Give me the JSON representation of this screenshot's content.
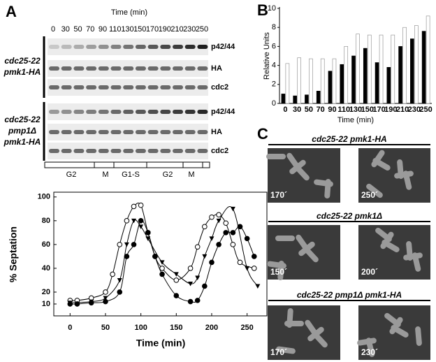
{
  "panel_labels": [
    "A",
    "B",
    "C"
  ],
  "blots": {
    "title": "Time (min)",
    "times": [
      0,
      30,
      50,
      70,
      90,
      110,
      130,
      150,
      170,
      190,
      210,
      230,
      250
    ],
    "strains": [
      {
        "lines": [
          "cdc25-22",
          "pmk1-HA"
        ],
        "rows": [
          "p42/44",
          "HA",
          "cdc2"
        ]
      },
      {
        "lines": [
          "cdc25-22",
          "pmp1Δ",
          "pmk1-HA"
        ],
        "rows": [
          "p42/44",
          "HA",
          "cdc2"
        ]
      }
    ],
    "phases": [
      "G2",
      "M",
      "G1-S",
      "G2",
      "M"
    ]
  },
  "chart_data": [
    {
      "type": "bar",
      "y_label": "Relative Units",
      "x_label": "Time (min)",
      "categories": [
        0,
        30,
        50,
        70,
        90,
        110,
        130,
        150,
        170,
        190,
        210,
        230,
        250
      ],
      "series": [
        {
          "color": "#000000",
          "values": [
            1,
            0.8,
            0.9,
            1.3,
            3.4,
            4.1,
            5,
            5.8,
            4.3,
            3.8,
            6,
            6.8,
            7.6
          ]
        },
        {
          "color": "#ffffff",
          "values": [
            4.2,
            4.8,
            4.7,
            4.7,
            4.7,
            6,
            7.3,
            7.2,
            7.2,
            7.2,
            8,
            8.2,
            9.2
          ]
        }
      ],
      "ylim": [
        0,
        10
      ],
      "yticks": [
        0,
        2,
        4,
        6,
        8,
        10
      ]
    },
    {
      "type": "line",
      "y_label": "% Septation",
      "x_label": "Time (min)",
      "series": [
        {
          "color": "#000000",
          "marker": "circle-open",
          "x": [
            0,
            10,
            30,
            50,
            60,
            70,
            80,
            90,
            100,
            110,
            120,
            130,
            150,
            170,
            180,
            190,
            200,
            210,
            220,
            230,
            240,
            260
          ],
          "values": [
            13,
            13,
            15,
            20,
            35,
            60,
            80,
            92,
            93,
            70,
            50,
            40,
            30,
            40,
            58,
            75,
            83,
            85,
            78,
            60,
            45,
            40
          ]
        },
        {
          "color": "#000000",
          "marker": "circle-filled",
          "x": [
            0,
            10,
            30,
            50,
            70,
            80,
            90,
            100,
            110,
            120,
            130,
            150,
            170,
            180,
            190,
            200,
            210,
            220,
            230,
            240,
            250,
            260
          ],
          "values": [
            10,
            10,
            11,
            12,
            20,
            50,
            60,
            80,
            70,
            50,
            35,
            17,
            12,
            13,
            25,
            45,
            60,
            70,
            70,
            75,
            65,
            50
          ]
        },
        {
          "color": "#000000",
          "marker": "triangle-down",
          "x": [
            0,
            30,
            50,
            70,
            80,
            90,
            100,
            110,
            130,
            150,
            170,
            180,
            190,
            200,
            210,
            230,
            250,
            265
          ],
          "values": [
            11,
            12,
            15,
            30,
            60,
            80,
            75,
            65,
            45,
            35,
            27,
            32,
            50,
            65,
            80,
            90,
            40,
            25
          ]
        }
      ],
      "xlim": [
        -23,
        278
      ],
      "xticks": [
        0,
        50,
        100,
        150,
        200,
        250
      ],
      "ylim": [
        0,
        104
      ],
      "yticks": [
        10,
        20,
        40,
        60,
        80,
        100
      ]
    }
  ],
  "micrographs": [
    {
      "title": "cdc25-22  pmk1-HA",
      "times": [
        "170´",
        "250´"
      ]
    },
    {
      "title": "cdc25-22    pmk1Δ",
      "times": [
        "150´",
        "200´"
      ]
    },
    {
      "title": "cdc25-22   pmp1Δ  pmk1-HA",
      "times": [
        "170´",
        "230´"
      ]
    }
  ]
}
